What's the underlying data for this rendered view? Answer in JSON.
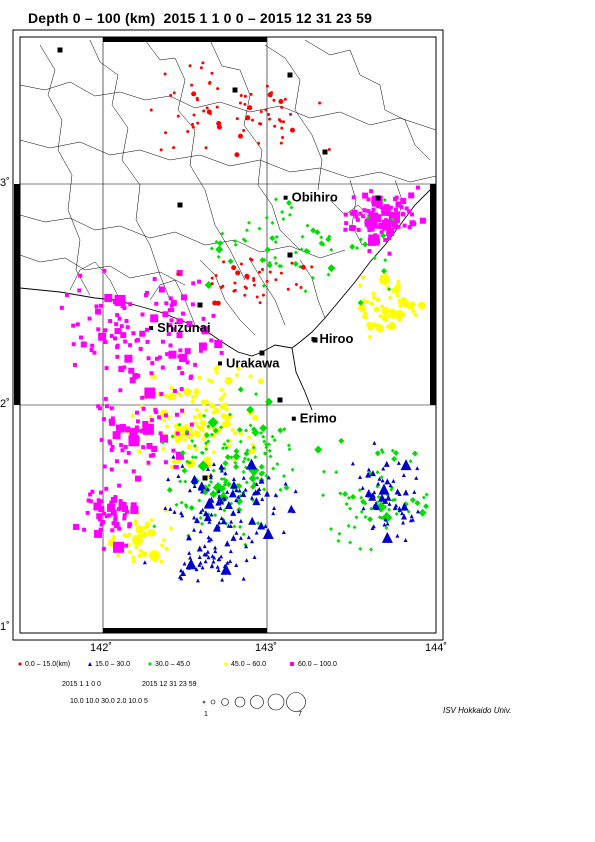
{
  "title": "Depth 0 – 100 (km)  2015 1 1 0 0 – 2015 12 31 23 59",
  "map": {
    "lon_labels": [
      "142˚",
      "143˚",
      "144˚"
    ],
    "lat_labels": [
      "3˚",
      "2˚",
      "1˚"
    ],
    "places": [
      {
        "name": "Obihiro",
        "lon": 143.15,
        "lat": 42.92
      },
      {
        "name": "Shizunai",
        "lon": 142.33,
        "lat": 42.33
      },
      {
        "name": "Urakawa",
        "lon": 142.75,
        "lat": 42.17
      },
      {
        "name": "Hiroo",
        "lon": 143.32,
        "lat": 42.28
      },
      {
        "name": "Erimo",
        "lon": 143.2,
        "lat": 41.92
      }
    ]
  },
  "legend": {
    "depth_classes": [
      {
        "label": "0.0  – 15.0(km)",
        "color": "#ff0000",
        "shape": "circle"
      },
      {
        "label": "15.0 – 30.0",
        "color": "#0000cc",
        "shape": "triangle"
      },
      {
        "label": "30.0 – 45.0",
        "color": "#00dd00",
        "shape": "diamond"
      },
      {
        "label": "45.0 – 60.0",
        "color": "#ffff00",
        "shape": "circle"
      },
      {
        "label": "60.0 – 100.0",
        "color": "#ff00ff",
        "shape": "square"
      }
    ],
    "period_start": "2015 1 1 0 0",
    "period_end": "2015 12 31 23 59",
    "params": "10.0 10.0 30.0   2.0 10.0    5",
    "mag_min_label": "1",
    "mag_max_label": "7"
  },
  "credit": "ISV Hokkaido Univ.",
  "colors": {
    "shallow": "#ff0000",
    "mid": "#0000cc",
    "green": "#00dd00",
    "yellow": "#ffff00",
    "deep": "#ff00ff"
  }
}
